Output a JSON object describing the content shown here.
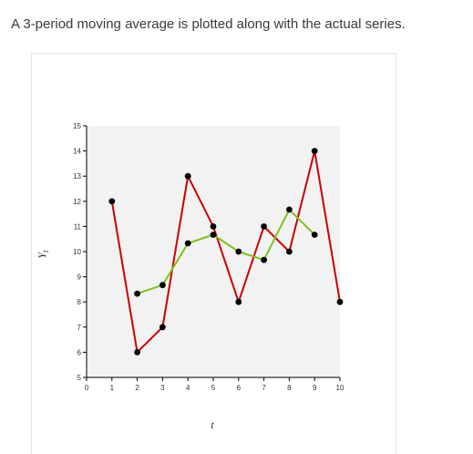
{
  "caption": "A 3-period moving average is plotted along with the actual series.",
  "chart_data": {
    "type": "line",
    "xlabel": "t",
    "ylabel_main": "Y",
    "ylabel_sub": "t",
    "xlim": [
      0,
      10
    ],
    "ylim": [
      5,
      15
    ],
    "xticks": [
      0,
      1,
      2,
      3,
      4,
      5,
      6,
      7,
      8,
      9,
      10
    ],
    "yticks": [
      5,
      6,
      7,
      8,
      9,
      10,
      11,
      12,
      13,
      14,
      15
    ],
    "grid": false,
    "plot_background": "#f2f2f2",
    "series": [
      {
        "color": "#cc0000",
        "x": [
          1,
          2,
          3,
          4,
          5,
          6,
          7,
          8,
          9,
          10
        ],
        "y": [
          12,
          6,
          7,
          13,
          11,
          8,
          11,
          10,
          14,
          8
        ]
      },
      {
        "color": "#7dc221",
        "x": [
          2,
          3,
          4,
          5,
          6,
          7,
          8,
          9
        ],
        "y": [
          8.33,
          8.67,
          10.33,
          10.67,
          10,
          9.67,
          11.67,
          10.67
        ]
      }
    ]
  }
}
